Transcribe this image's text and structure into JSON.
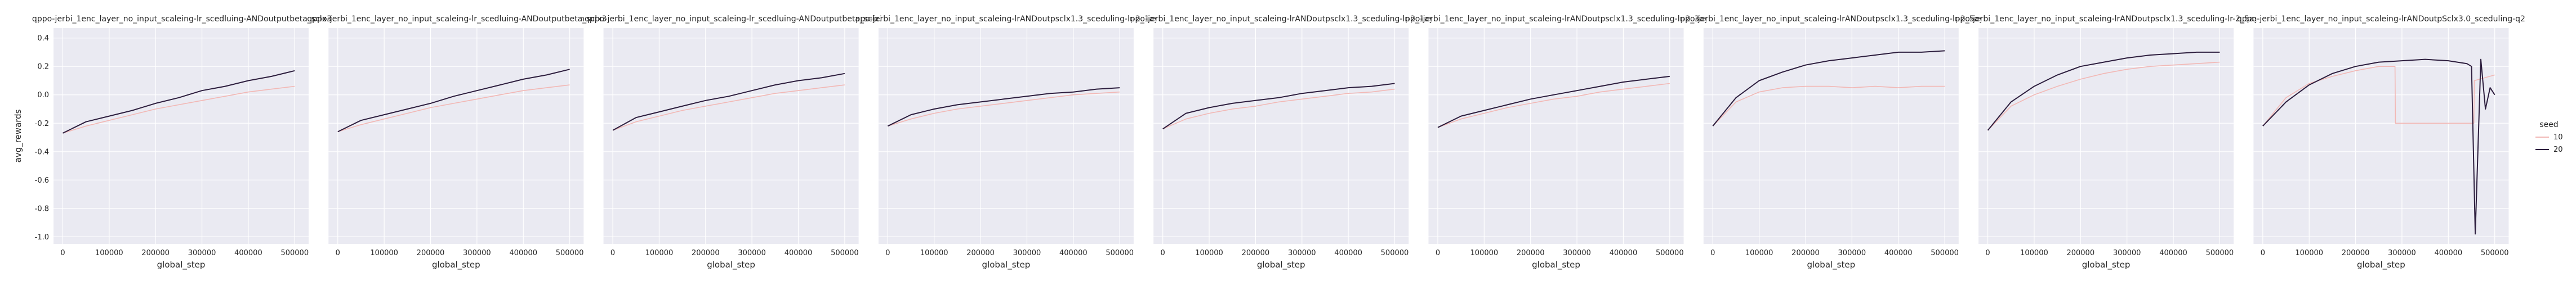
{
  "figure": {
    "ylabel": "avg_rewards",
    "xlabel": "global_step",
    "legend": {
      "title": "seed",
      "entries": [
        {
          "label": "10",
          "color": "#f2b8b5"
        },
        {
          "label": "20",
          "color": "#2d1e3e"
        }
      ]
    },
    "colors": {
      "background": "#eaeaf2",
      "grid": "#ffffff"
    }
  },
  "chart_data": [
    {
      "type": "line",
      "title": "= qppo-jerbi_1enc_layer_no_input_scaleing-lr_scedluing-ANDoutputbeta_sclx3.3",
      "xlabel": "global_step",
      "ylabel": "avg_rewards",
      "xlim": [
        -20000,
        530000
      ],
      "ylim": [
        -1.05,
        0.47
      ],
      "xticks": [
        0,
        100000,
        200000,
        300000,
        400000,
        500000
      ],
      "yticks": [
        -1.0,
        -0.8,
        -0.6,
        -0.4,
        -0.2,
        0.0,
        0.2,
        0.4
      ],
      "series": [
        {
          "name": "10",
          "x": [
            0,
            50000,
            100000,
            150000,
            200000,
            250000,
            300000,
            350000,
            400000,
            450000,
            500000
          ],
          "y": [
            -0.27,
            -0.22,
            -0.18,
            -0.14,
            -0.1,
            -0.07,
            -0.04,
            -0.01,
            0.02,
            0.04,
            0.06
          ]
        },
        {
          "name": "20",
          "x": [
            0,
            50000,
            100000,
            150000,
            200000,
            250000,
            300000,
            350000,
            400000,
            450000,
            500000
          ],
          "y": [
            -0.27,
            -0.19,
            -0.15,
            -0.11,
            -0.06,
            -0.02,
            0.03,
            0.06,
            0.1,
            0.13,
            0.17
          ]
        }
      ]
    },
    {
      "type": "line",
      "title": "ceqppo-jerbi_1enc_layer_no_input_scaleing-lr_scedluing-ANDoutputbeta_sclx3.8",
      "xlabel": "global_step",
      "ylabel": "avg_rewards",
      "xlim": [
        -20000,
        530000
      ],
      "ylim": [
        -1.05,
        0.47
      ],
      "xticks": [
        0,
        100000,
        200000,
        300000,
        400000,
        500000
      ],
      "yticks": [
        -1.0,
        -0.8,
        -0.6,
        -0.4,
        -0.2,
        0.0,
        0.2,
        0.4
      ],
      "series": [
        {
          "name": "10",
          "x": [
            0,
            50000,
            100000,
            150000,
            200000,
            250000,
            300000,
            350000,
            400000,
            450000,
            500000
          ],
          "y": [
            -0.26,
            -0.21,
            -0.17,
            -0.13,
            -0.09,
            -0.06,
            -0.03,
            0.0,
            0.03,
            0.05,
            0.07
          ]
        },
        {
          "name": "20",
          "x": [
            0,
            50000,
            100000,
            150000,
            200000,
            250000,
            300000,
            350000,
            400000,
            450000,
            500000
          ],
          "y": [
            -0.26,
            -0.18,
            -0.14,
            -0.1,
            -0.06,
            -0.01,
            0.03,
            0.07,
            0.11,
            0.14,
            0.18
          ]
        }
      ]
    },
    {
      "type": "line",
      "title": "cenqppo-jerbi_1enc_layer_no_input_scaleing-lr_scedluing-ANDoutputbeta_sclx3.3",
      "xlabel": "global_step",
      "ylabel": "avg_rewards",
      "xlim": [
        -20000,
        530000
      ],
      "ylim": [
        -1.05,
        0.47
      ],
      "xticks": [
        0,
        100000,
        200000,
        300000,
        400000,
        500000
      ],
      "yticks": [
        -1.0,
        -0.8,
        -0.6,
        -0.4,
        -0.2,
        0.0,
        0.2,
        0.4
      ],
      "series": [
        {
          "name": "10",
          "x": [
            0,
            50000,
            100000,
            150000,
            200000,
            250000,
            300000,
            350000,
            400000,
            450000,
            500000
          ],
          "y": [
            -0.25,
            -0.19,
            -0.15,
            -0.11,
            -0.08,
            -0.05,
            -0.02,
            0.01,
            0.03,
            0.05,
            0.07
          ]
        },
        {
          "name": "20",
          "x": [
            0,
            50000,
            100000,
            150000,
            200000,
            250000,
            300000,
            350000,
            400000,
            450000,
            500000
          ],
          "y": [
            -0.25,
            -0.16,
            -0.12,
            -0.08,
            -0.04,
            -0.01,
            0.03,
            0.07,
            0.1,
            0.12,
            0.15
          ]
        }
      ]
    },
    {
      "type": "line",
      "title": "qppo-jerbi_1enc_layer_no_input_scaleing-lrANDoutpsclx1.3_sceduling-lr-2_1ayr",
      "xlabel": "global_step",
      "ylabel": "avg_rewards",
      "xlim": [
        -20000,
        530000
      ],
      "ylim": [
        -1.05,
        0.47
      ],
      "xticks": [
        0,
        100000,
        200000,
        300000,
        400000,
        500000
      ],
      "yticks": [
        -1.0,
        -0.8,
        -0.6,
        -0.4,
        -0.2,
        0.0,
        0.2,
        0.4
      ],
      "series": [
        {
          "name": "10",
          "x": [
            0,
            50000,
            100000,
            150000,
            200000,
            250000,
            300000,
            350000,
            400000,
            450000,
            500000
          ],
          "y": [
            -0.22,
            -0.17,
            -0.13,
            -0.1,
            -0.08,
            -0.06,
            -0.04,
            -0.02,
            0.0,
            0.01,
            0.02
          ]
        },
        {
          "name": "20",
          "x": [
            0,
            50000,
            100000,
            150000,
            200000,
            250000,
            300000,
            350000,
            400000,
            450000,
            500000
          ],
          "y": [
            -0.22,
            -0.14,
            -0.1,
            -0.07,
            -0.05,
            -0.03,
            -0.01,
            0.01,
            0.02,
            0.04,
            0.05
          ]
        }
      ]
    },
    {
      "type": "line",
      "title": "qppo-jerbi_1enc_layer_no_input_scaleing-lrANDoutpsclx1.3_sceduling-lr-2_1ayr",
      "xlabel": "global_step",
      "ylabel": "avg_rewards",
      "xlim": [
        -20000,
        530000
      ],
      "ylim": [
        -1.05,
        0.47
      ],
      "xticks": [
        0,
        100000,
        200000,
        300000,
        400000,
        500000
      ],
      "yticks": [
        -1.0,
        -0.8,
        -0.6,
        -0.4,
        -0.2,
        0.0,
        0.2,
        0.4
      ],
      "series": [
        {
          "name": "10",
          "x": [
            0,
            50000,
            100000,
            150000,
            200000,
            250000,
            300000,
            350000,
            400000,
            450000,
            500000
          ],
          "y": [
            -0.24,
            -0.17,
            -0.13,
            -0.1,
            -0.08,
            -0.05,
            -0.03,
            -0.01,
            0.01,
            0.02,
            0.04
          ]
        },
        {
          "name": "20",
          "x": [
            0,
            50000,
            100000,
            150000,
            200000,
            250000,
            300000,
            350000,
            400000,
            450000,
            500000
          ],
          "y": [
            -0.24,
            -0.13,
            -0.09,
            -0.06,
            -0.04,
            -0.02,
            0.01,
            0.03,
            0.05,
            0.06,
            0.08
          ]
        }
      ]
    },
    {
      "type": "line",
      "title": "qppo-jerbi_1enc_layer_no_input_scaleing-lrANDoutpsclx1.3_sceduling-lr-2_3ayr",
      "xlabel": "global_step",
      "ylabel": "avg_rewards",
      "xlim": [
        -20000,
        530000
      ],
      "ylim": [
        -1.05,
        0.47
      ],
      "xticks": [
        0,
        100000,
        200000,
        300000,
        400000,
        500000
      ],
      "yticks": [
        -1.0,
        -0.8,
        -0.6,
        -0.4,
        -0.2,
        0.0,
        0.2,
        0.4
      ],
      "series": [
        {
          "name": "10",
          "x": [
            0,
            50000,
            100000,
            150000,
            200000,
            250000,
            300000,
            350000,
            400000,
            450000,
            500000
          ],
          "y": [
            -0.23,
            -0.17,
            -0.13,
            -0.09,
            -0.06,
            -0.03,
            -0.01,
            0.02,
            0.04,
            0.06,
            0.08
          ]
        },
        {
          "name": "20",
          "x": [
            0,
            50000,
            100000,
            150000,
            200000,
            250000,
            300000,
            350000,
            400000,
            450000,
            500000
          ],
          "y": [
            -0.23,
            -0.15,
            -0.11,
            -0.07,
            -0.03,
            0.0,
            0.03,
            0.06,
            0.09,
            0.11,
            0.13
          ]
        }
      ]
    },
    {
      "type": "line",
      "title": "qppo-jerbi_1enc_layer_no_input_scaleing-lrANDoutpsclx1.3_sceduling-lr-2_5ayr",
      "xlabel": "global_step",
      "ylabel": "avg_rewards",
      "xlim": [
        -20000,
        530000
      ],
      "ylim": [
        -1.05,
        0.47
      ],
      "xticks": [
        0,
        100000,
        200000,
        300000,
        400000,
        500000
      ],
      "yticks": [
        -1.0,
        -0.8,
        -0.6,
        -0.4,
        -0.2,
        0.0,
        0.2,
        0.4
      ],
      "series": [
        {
          "name": "10",
          "x": [
            0,
            50000,
            100000,
            150000,
            200000,
            250000,
            300000,
            350000,
            400000,
            450000,
            500000
          ],
          "y": [
            -0.22,
            -0.05,
            0.02,
            0.05,
            0.06,
            0.06,
            0.05,
            0.06,
            0.05,
            0.06,
            0.06
          ]
        },
        {
          "name": "20",
          "x": [
            0,
            50000,
            100000,
            150000,
            200000,
            250000,
            300000,
            350000,
            400000,
            450000,
            500000
          ],
          "y": [
            -0.22,
            -0.02,
            0.1,
            0.16,
            0.21,
            0.24,
            0.26,
            0.28,
            0.3,
            0.3,
            0.31
          ]
        }
      ]
    },
    {
      "type": "line",
      "title": "qppo-jerbi_1enc_layer_no_input_scaleing-lrANDoutpsclx1.3_sceduling-lr-2_5ayr",
      "xlabel": "global_step",
      "ylabel": "avg_rewards",
      "xlim": [
        -20000,
        530000
      ],
      "ylim": [
        -1.05,
        0.47
      ],
      "xticks": [
        0,
        100000,
        200000,
        300000,
        400000,
        500000
      ],
      "yticks": [
        -1.0,
        -0.8,
        -0.6,
        -0.4,
        -0.2,
        0.0,
        0.2,
        0.4
      ],
      "series": [
        {
          "name": "10",
          "x": [
            0,
            50000,
            100000,
            150000,
            200000,
            250000,
            300000,
            350000,
            400000,
            450000,
            500000
          ],
          "y": [
            -0.25,
            -0.08,
            0.0,
            0.06,
            0.11,
            0.15,
            0.18,
            0.2,
            0.21,
            0.22,
            0.23
          ]
        },
        {
          "name": "20",
          "x": [
            0,
            50000,
            100000,
            150000,
            200000,
            250000,
            300000,
            350000,
            400000,
            450000,
            500000
          ],
          "y": [
            -0.25,
            -0.05,
            0.06,
            0.14,
            0.2,
            0.23,
            0.26,
            0.28,
            0.29,
            0.3,
            0.3
          ]
        }
      ]
    },
    {
      "type": "line",
      "title": "qppo-jerbi_1enc_layer_no_input_scaleing-lrANDoutpSclx3.0_sceduling-q2",
      "xlabel": "global_step",
      "ylabel": "avg_rewards",
      "xlim": [
        -20000,
        530000
      ],
      "ylim": [
        -1.05,
        0.47
      ],
      "xticks": [
        0,
        100000,
        200000,
        300000,
        400000,
        500000
      ],
      "yticks": [
        -1.0,
        -0.8,
        -0.6,
        -0.4,
        -0.2,
        0.0,
        0.2,
        0.4
      ],
      "series": [
        {
          "name": "10",
          "x": [
            0,
            50000,
            100000,
            150000,
            200000,
            250000,
            285000,
            286000,
            400000,
            455000,
            456000,
            500000
          ],
          "y": [
            -0.22,
            -0.02,
            0.08,
            0.13,
            0.17,
            0.2,
            0.2,
            -0.2,
            -0.2,
            -0.2,
            0.1,
            0.14
          ]
        },
        {
          "name": "20",
          "x": [
            0,
            50000,
            100000,
            150000,
            200000,
            250000,
            300000,
            350000,
            400000,
            440000,
            450000,
            458000,
            470000,
            480000,
            490000,
            500000
          ],
          "y": [
            -0.22,
            -0.05,
            0.07,
            0.15,
            0.2,
            0.23,
            0.24,
            0.25,
            0.24,
            0.22,
            0.2,
            -0.98,
            0.25,
            -0.1,
            0.05,
            0.0
          ]
        }
      ]
    }
  ]
}
